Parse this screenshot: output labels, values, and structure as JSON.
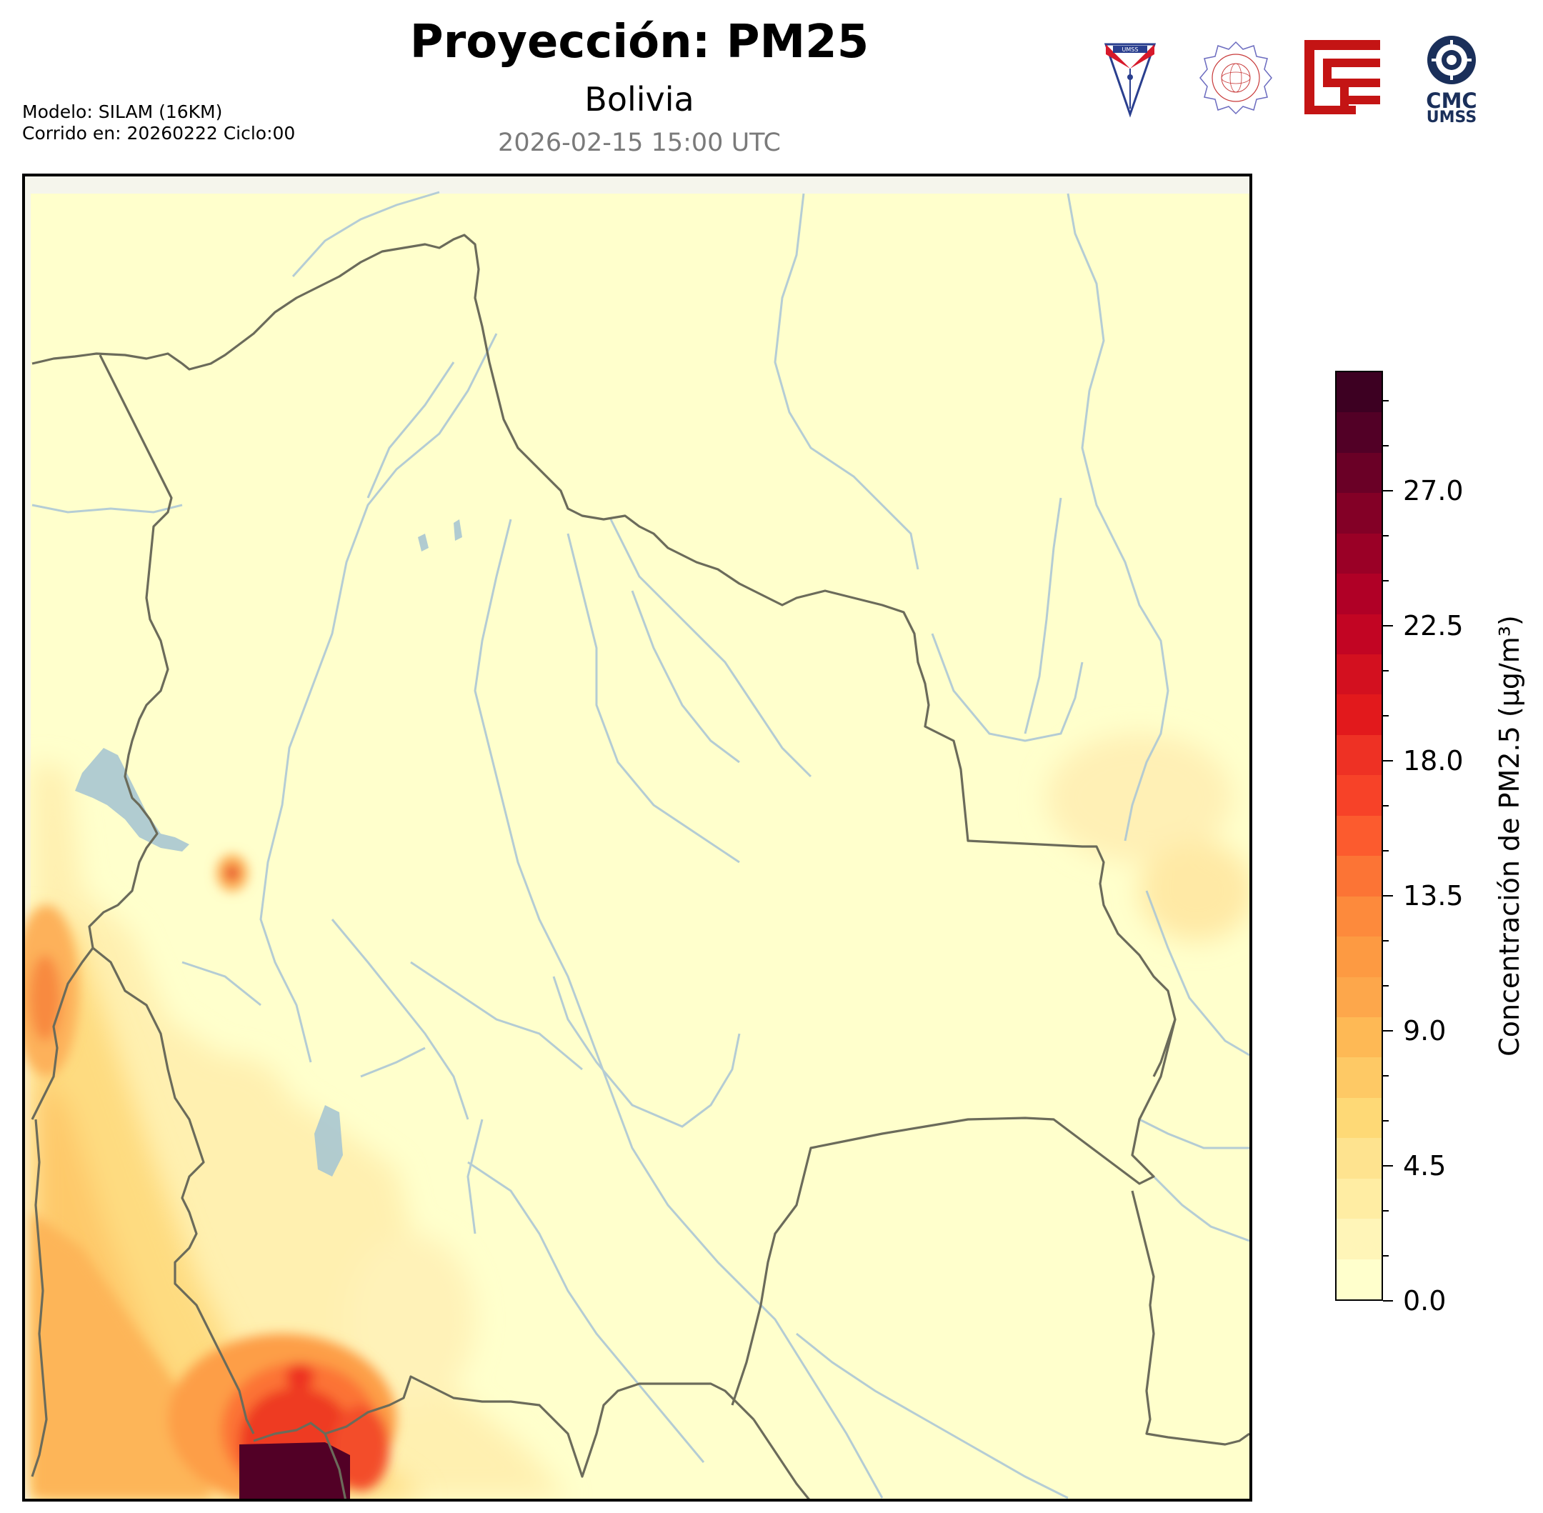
{
  "title": "Proyección: PM25",
  "subtitle": "Bolivia",
  "timestamp": "2026-02-15 15:00 UTC",
  "model_info": {
    "line1": "Modelo: SILAM (16KM)",
    "line2": "Corrido en: 20260222 Ciclo:00"
  },
  "logos": [
    {
      "name": "umss-shield-logo",
      "text": "UMSS"
    },
    {
      "name": "departamento-fisica-seal-logo",
      "text": "DEPARTAMENTO DE FÍSICA"
    },
    {
      "name": "red-geometric-logo",
      "text": ""
    },
    {
      "name": "cmc-umss-logo",
      "text": "CMC",
      "text2": "UMSS"
    }
  ],
  "colorbar": {
    "label": "Concentración de PM2.5 (µg/m³)",
    "min": 0,
    "max": 30,
    "ticks": [
      "0.0",
      "4.5",
      "9.0",
      "13.5",
      "18.0",
      "22.5",
      "27.0"
    ],
    "tick_values": [
      0,
      4.5,
      9,
      13.5,
      18,
      22.5,
      27
    ],
    "colors": [
      "#ffffcc",
      "#fff5b8",
      "#ffeda3",
      "#fee38f",
      "#fed976",
      "#fec965",
      "#feb955",
      "#fda74b",
      "#fd9a42",
      "#fd8a3c",
      "#fc7435",
      "#fc5b2e",
      "#f74228",
      "#ee3124",
      "#e2191c",
      "#d3101f",
      "#c20523",
      "#b00026",
      "#9a0026",
      "#830026",
      "#6a0026",
      "#520026",
      "#3d0022"
    ]
  },
  "map": {
    "region": "Bolivia",
    "colors": {
      "background_field": "#ffffcc",
      "border": "#6b6b5a",
      "river": "#a8c4d6",
      "lake": "#a9c6d1"
    }
  }
}
